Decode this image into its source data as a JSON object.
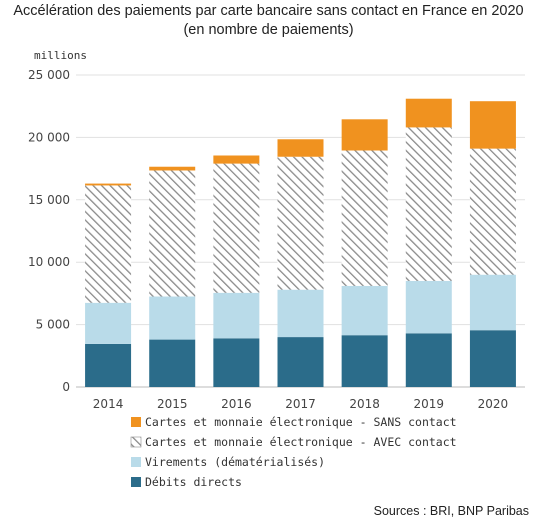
{
  "title_line1": "Accélération des paiements par carte bancaire sans contact en France en 2020",
  "title_line2": "(en nombre de paiements)",
  "source": "Sources : BRI, BNP Paribas",
  "chart_data": {
    "type": "bar",
    "stacked": true,
    "unit_label": "millions",
    "categories": [
      "2014",
      "2015",
      "2016",
      "2017",
      "2018",
      "2019",
      "2020"
    ],
    "ylim": [
      0,
      25000
    ],
    "yticks": [
      0,
      5000,
      10000,
      15000,
      20000,
      25000
    ],
    "ytick_labels": [
      "0",
      "5 000",
      "10 000",
      "15 000",
      "20 000",
      "25 000"
    ],
    "grid": true,
    "legend_position": "bottom",
    "series": [
      {
        "name": "Débits directs",
        "color": "#2b6c8a",
        "pattern": "solid",
        "values": [
          3450,
          3800,
          3900,
          4000,
          4150,
          4300,
          4550
        ]
      },
      {
        "name": "Virements (dématérialisés)",
        "color": "#b9dbe9",
        "pattern": "solid",
        "values": [
          3300,
          3450,
          3650,
          3800,
          3950,
          4200,
          4450
        ]
      },
      {
        "name": "Cartes et monnaie électronique - AVEC contact",
        "color": "#8a8a8a",
        "pattern": "hatch",
        "values": [
          9400,
          10100,
          10350,
          10650,
          10850,
          12300,
          10100
        ]
      },
      {
        "name": "Cartes et monnaie électronique - SANS contact",
        "color": "#f0921f",
        "pattern": "solid",
        "values": [
          150,
          300,
          650,
          1400,
          2500,
          2300,
          3800
        ]
      }
    ],
    "legend_order": [
      3,
      2,
      1,
      0
    ]
  }
}
